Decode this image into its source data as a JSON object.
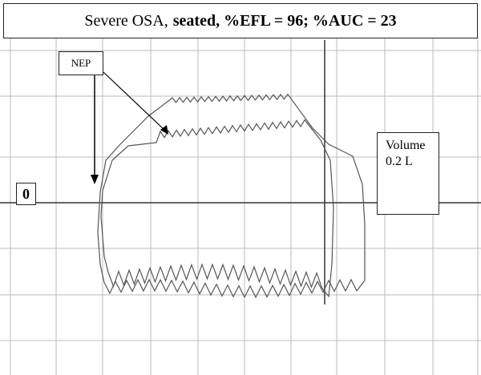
{
  "title": {
    "plain": "Severe OSA,",
    "bold": "seated, %EFL = 96; %AUC = 23"
  },
  "annotations": {
    "nep": "NEP",
    "zero": "0",
    "volume": "Volume",
    "scale": "0.2 L"
  }
}
